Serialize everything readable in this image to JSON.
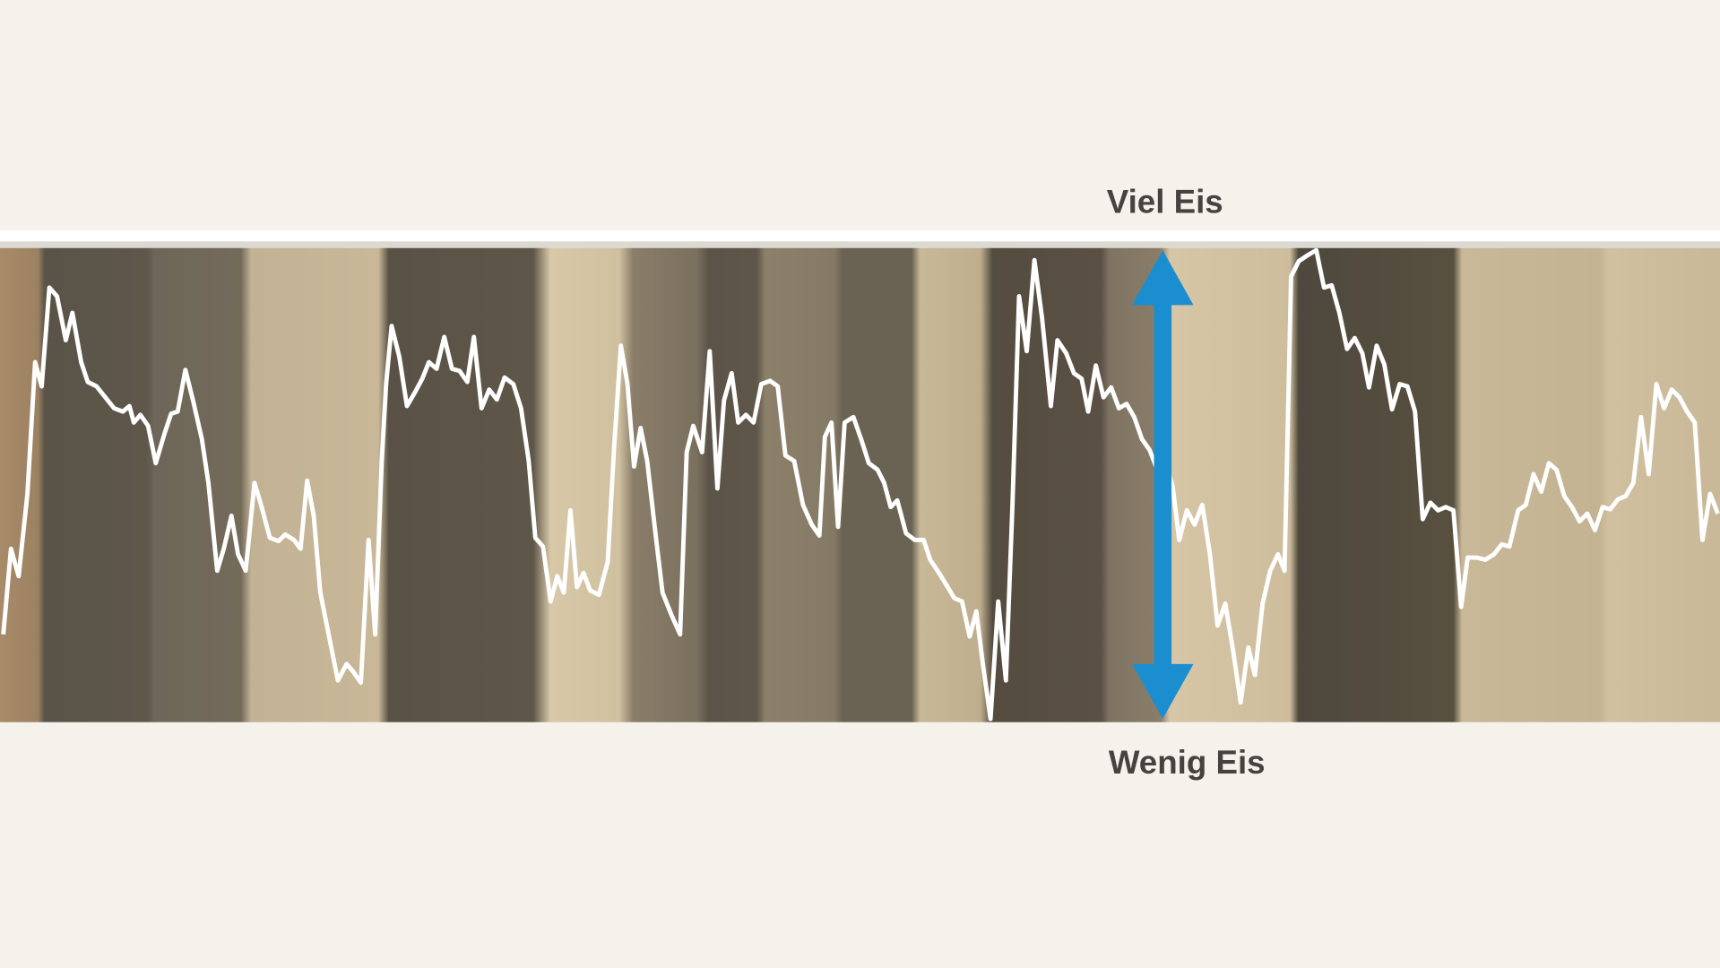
{
  "labels": {
    "top": "Viel Eis",
    "bottom": "Wenig Eis"
  }
}
